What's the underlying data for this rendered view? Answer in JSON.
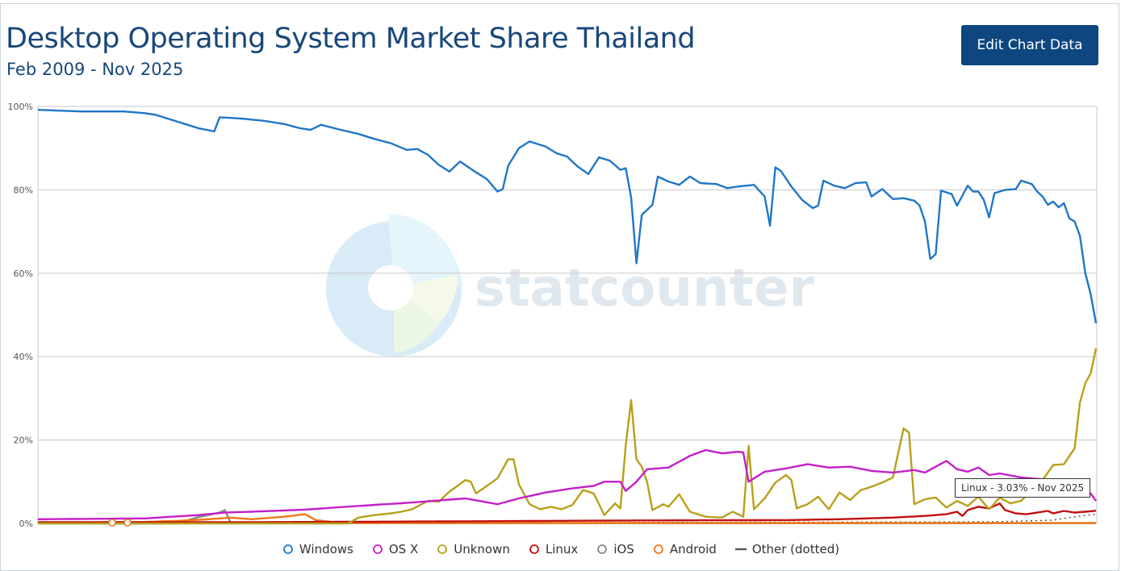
{
  "header": {
    "title": "Desktop Operating System Market Share Thailand",
    "subtitle": "Feb 2009 - Nov 2025",
    "edit_button": "Edit Chart Data"
  },
  "watermark": {
    "text": "statcounter"
  },
  "tooltip": {
    "text": "Linux - 3.03% - Nov 2025"
  },
  "colors": {
    "Windows": "#1f77c8",
    "OS X": "#c41fc8",
    "Unknown": "#b8a01a",
    "Linux": "#c01010",
    "iOS": "#888888",
    "Android": "#f07818",
    "Other (dotted)": "#555555",
    "grid": "#c8c8c8",
    "axis_text": "#555555"
  },
  "chart_data": {
    "type": "line",
    "title": "Desktop Operating System Market Share Thailand",
    "subtitle": "Feb 2009 - Nov 2025",
    "x_start": "2009-02",
    "x_end": "2025-11",
    "x_count": 202,
    "ylim": [
      0,
      100
    ],
    "yticks": [
      "0%",
      "20%",
      "40%",
      "60%",
      "80%",
      "100%"
    ],
    "ytick_values": [
      0,
      20,
      40,
      60,
      80,
      100
    ],
    "grid": true,
    "legend_position": "bottom",
    "series": [
      {
        "name": "Windows",
        "anchors": [
          [
            0,
            99.2
          ],
          [
            4,
            99.0
          ],
          [
            8,
            98.8
          ],
          [
            12,
            98.8
          ],
          [
            16,
            98.8
          ],
          [
            20,
            98.4
          ],
          [
            22,
            98.0
          ],
          [
            24,
            97.2
          ],
          [
            27,
            96.0
          ],
          [
            30,
            94.8
          ],
          [
            33,
            94.0
          ],
          [
            34,
            97.4
          ],
          [
            38,
            97.1
          ],
          [
            42,
            96.6
          ],
          [
            46,
            95.8
          ],
          [
            49,
            94.8
          ],
          [
            51,
            94.4
          ],
          [
            53,
            95.6
          ],
          [
            56,
            94.6
          ],
          [
            60,
            93.4
          ],
          [
            63,
            92.2
          ],
          [
            66,
            91.2
          ],
          [
            69,
            89.6
          ],
          [
            71,
            89.8
          ],
          [
            73,
            88.4
          ],
          [
            75,
            86.0
          ],
          [
            77,
            84.4
          ],
          [
            79,
            86.8
          ],
          [
            82,
            84.2
          ],
          [
            84,
            82.6
          ],
          [
            86,
            79.6
          ],
          [
            87,
            80.2
          ],
          [
            88,
            85.8
          ],
          [
            90,
            90.0
          ],
          [
            92,
            91.6
          ],
          [
            95,
            90.4
          ],
          [
            97,
            88.8
          ],
          [
            99,
            88.0
          ],
          [
            101,
            85.6
          ],
          [
            103,
            83.8
          ],
          [
            105,
            87.8
          ],
          [
            107,
            87.0
          ],
          [
            109,
            84.8
          ],
          [
            110,
            85.2
          ],
          [
            111,
            78.2
          ],
          [
            112,
            62.4
          ],
          [
            113,
            74.0
          ],
          [
            115,
            76.4
          ],
          [
            116,
            83.2
          ],
          [
            118,
            82.0
          ],
          [
            120,
            81.2
          ],
          [
            122,
            83.2
          ],
          [
            124,
            81.6
          ],
          [
            127,
            81.4
          ],
          [
            129,
            80.4
          ],
          [
            131,
            80.8
          ],
          [
            134,
            81.2
          ],
          [
            136,
            78.4
          ],
          [
            137,
            71.4
          ],
          [
            138,
            85.4
          ],
          [
            139,
            84.6
          ],
          [
            141,
            80.8
          ],
          [
            143,
            77.6
          ],
          [
            145,
            75.6
          ],
          [
            146,
            76.2
          ],
          [
            147,
            82.2
          ],
          [
            149,
            81.0
          ],
          [
            151,
            80.4
          ],
          [
            153,
            81.6
          ],
          [
            155,
            81.8
          ],
          [
            156,
            78.4
          ],
          [
            158,
            80.2
          ],
          [
            160,
            77.8
          ],
          [
            162,
            78.0
          ],
          [
            164,
            77.4
          ],
          [
            165,
            76.2
          ],
          [
            166,
            72.4
          ],
          [
            167,
            63.4
          ],
          [
            168,
            64.6
          ],
          [
            169,
            79.8
          ],
          [
            171,
            79.0
          ],
          [
            172,
            76.2
          ],
          [
            174,
            81.0
          ],
          [
            175,
            79.6
          ],
          [
            176,
            79.6
          ],
          [
            177,
            77.6
          ],
          [
            178,
            73.4
          ],
          [
            179,
            79.2
          ],
          [
            181,
            80.0
          ],
          [
            183,
            80.2
          ],
          [
            184,
            82.2
          ],
          [
            186,
            81.4
          ],
          [
            187,
            79.6
          ],
          [
            188,
            78.4
          ],
          [
            189,
            76.4
          ],
          [
            190,
            77.2
          ],
          [
            191,
            75.8
          ],
          [
            192,
            76.8
          ],
          [
            193,
            73.2
          ],
          [
            194,
            72.4
          ],
          [
            195,
            69.0
          ],
          [
            196,
            60.0
          ],
          [
            197,
            55.0
          ],
          [
            198,
            48.0
          ]
        ]
      },
      {
        "name": "OS X",
        "anchors": [
          [
            0,
            1.0
          ],
          [
            10,
            1.1
          ],
          [
            20,
            1.2
          ],
          [
            30,
            2.0
          ],
          [
            35,
            2.6
          ],
          [
            42,
            2.9
          ],
          [
            50,
            3.3
          ],
          [
            60,
            4.2
          ],
          [
            70,
            5.0
          ],
          [
            80,
            6.0
          ],
          [
            86,
            4.6
          ],
          [
            90,
            6.0
          ],
          [
            95,
            7.4
          ],
          [
            100,
            8.4
          ],
          [
            104,
            9.0
          ],
          [
            106,
            10.0
          ],
          [
            109,
            10.0
          ],
          [
            110,
            7.8
          ],
          [
            112,
            10.0
          ],
          [
            114,
            13.0
          ],
          [
            118,
            13.4
          ],
          [
            122,
            16.2
          ],
          [
            125,
            17.6
          ],
          [
            128,
            16.8
          ],
          [
            131,
            17.2
          ],
          [
            132,
            17.0
          ],
          [
            133,
            10.0
          ],
          [
            136,
            12.4
          ],
          [
            140,
            13.2
          ],
          [
            144,
            14.2
          ],
          [
            148,
            13.4
          ],
          [
            152,
            13.6
          ],
          [
            156,
            12.6
          ],
          [
            160,
            12.2
          ],
          [
            164,
            12.8
          ],
          [
            166,
            12.2
          ],
          [
            168,
            13.6
          ],
          [
            170,
            15.0
          ],
          [
            172,
            13.0
          ],
          [
            174,
            12.4
          ],
          [
            176,
            13.4
          ],
          [
            178,
            11.6
          ],
          [
            180,
            12.0
          ],
          [
            184,
            11.0
          ],
          [
            190,
            10.4
          ],
          [
            194,
            9.4
          ],
          [
            197,
            7.2
          ],
          [
            198,
            5.4
          ]
        ]
      },
      {
        "name": "Unknown",
        "anchors": [
          [
            0,
            0
          ],
          [
            58,
            0
          ],
          [
            60,
            1.4
          ],
          [
            63,
            2.0
          ],
          [
            66,
            2.4
          ],
          [
            68,
            2.8
          ],
          [
            70,
            3.4
          ],
          [
            73,
            5.4
          ],
          [
            75,
            5.2
          ],
          [
            77,
            7.6
          ],
          [
            80,
            10.4
          ],
          [
            81,
            10.0
          ],
          [
            82,
            7.2
          ],
          [
            84,
            9.0
          ],
          [
            86,
            10.8
          ],
          [
            88,
            15.4
          ],
          [
            89,
            15.4
          ],
          [
            90,
            9.4
          ],
          [
            92,
            4.6
          ],
          [
            94,
            3.4
          ],
          [
            96,
            4.0
          ],
          [
            98,
            3.4
          ],
          [
            100,
            4.4
          ],
          [
            102,
            8.0
          ],
          [
            104,
            7.2
          ],
          [
            106,
            2.0
          ],
          [
            108,
            4.8
          ],
          [
            109,
            3.6
          ],
          [
            110,
            18.6
          ],
          [
            111,
            29.6
          ],
          [
            112,
            15.4
          ],
          [
            113,
            13.6
          ],
          [
            114,
            10.0
          ],
          [
            115,
            3.2
          ],
          [
            117,
            4.6
          ],
          [
            118,
            4.0
          ],
          [
            120,
            7.0
          ],
          [
            122,
            2.8
          ],
          [
            125,
            1.6
          ],
          [
            128,
            1.4
          ],
          [
            130,
            2.8
          ],
          [
            132,
            1.6
          ],
          [
            133,
            18.6
          ],
          [
            134,
            3.4
          ],
          [
            136,
            6.0
          ],
          [
            138,
            9.8
          ],
          [
            140,
            11.6
          ],
          [
            141,
            10.4
          ],
          [
            142,
            3.6
          ],
          [
            144,
            4.6
          ],
          [
            146,
            6.4
          ],
          [
            148,
            3.4
          ],
          [
            150,
            7.4
          ],
          [
            152,
            5.6
          ],
          [
            154,
            8.0
          ],
          [
            156,
            8.8
          ],
          [
            158,
            9.8
          ],
          [
            160,
            11.0
          ],
          [
            162,
            22.8
          ],
          [
            163,
            21.8
          ],
          [
            164,
            4.6
          ],
          [
            166,
            5.8
          ],
          [
            168,
            6.2
          ],
          [
            170,
            3.8
          ],
          [
            172,
            5.4
          ],
          [
            174,
            4.2
          ],
          [
            176,
            6.4
          ],
          [
            178,
            3.4
          ],
          [
            180,
            6.2
          ],
          [
            182,
            4.8
          ],
          [
            184,
            5.4
          ],
          [
            186,
            8.0
          ],
          [
            188,
            10.4
          ],
          [
            190,
            14.0
          ],
          [
            192,
            14.2
          ],
          [
            194,
            18.0
          ],
          [
            195,
            29.0
          ],
          [
            196,
            33.6
          ],
          [
            197,
            36.0
          ],
          [
            198,
            42.0
          ]
        ]
      },
      {
        "name": "Linux",
        "anchors": [
          [
            0,
            0.3
          ],
          [
            40,
            0.3
          ],
          [
            80,
            0.5
          ],
          [
            110,
            0.7
          ],
          [
            140,
            0.8
          ],
          [
            150,
            1.0
          ],
          [
            160,
            1.4
          ],
          [
            166,
            1.8
          ],
          [
            170,
            2.2
          ],
          [
            172,
            2.8
          ],
          [
            173,
            1.8
          ],
          [
            174,
            3.2
          ],
          [
            176,
            4.0
          ],
          [
            178,
            3.6
          ],
          [
            180,
            4.8
          ],
          [
            181,
            3.2
          ],
          [
            183,
            2.4
          ],
          [
            185,
            2.2
          ],
          [
            187,
            2.6
          ],
          [
            189,
            3.0
          ],
          [
            190,
            2.4
          ],
          [
            192,
            3.0
          ],
          [
            194,
            2.6
          ],
          [
            196,
            2.8
          ],
          [
            198,
            3.03
          ]
        ]
      },
      {
        "name": "iOS",
        "anchors": [
          [
            0,
            0
          ],
          [
            26,
            0
          ],
          [
            30,
            1.5
          ],
          [
            34,
            2.6
          ],
          [
            35,
            3.2
          ],
          [
            36,
            0.3
          ],
          [
            40,
            0.1
          ],
          [
            60,
            0.05
          ],
          [
            198,
            0.05
          ]
        ]
      },
      {
        "name": "Android",
        "anchors": [
          [
            0,
            0.1
          ],
          [
            14,
            0.3
          ],
          [
            18,
            0.3
          ],
          [
            26,
            0.6
          ],
          [
            32,
            1.0
          ],
          [
            36,
            1.4
          ],
          [
            40,
            1.0
          ],
          [
            46,
            1.6
          ],
          [
            50,
            2.2
          ],
          [
            52,
            0.8
          ],
          [
            56,
            0.2
          ],
          [
            60,
            0.1
          ],
          [
            198,
            0.1
          ]
        ]
      },
      {
        "name": "Other (dotted)",
        "dotted": true,
        "anchors": [
          [
            0,
            0.2
          ],
          [
            100,
            0.2
          ],
          [
            150,
            0.3
          ],
          [
            180,
            0.4
          ],
          [
            190,
            0.8
          ],
          [
            194,
            1.6
          ],
          [
            198,
            2.2
          ]
        ]
      }
    ]
  },
  "legend": [
    {
      "label": "Windows",
      "marker": "circle"
    },
    {
      "label": "OS X",
      "marker": "circle"
    },
    {
      "label": "Unknown",
      "marker": "circle"
    },
    {
      "label": "Linux",
      "marker": "circle"
    },
    {
      "label": "iOS",
      "marker": "circle"
    },
    {
      "label": "Android",
      "marker": "circle"
    },
    {
      "label": "Other (dotted)",
      "marker": "line"
    }
  ]
}
